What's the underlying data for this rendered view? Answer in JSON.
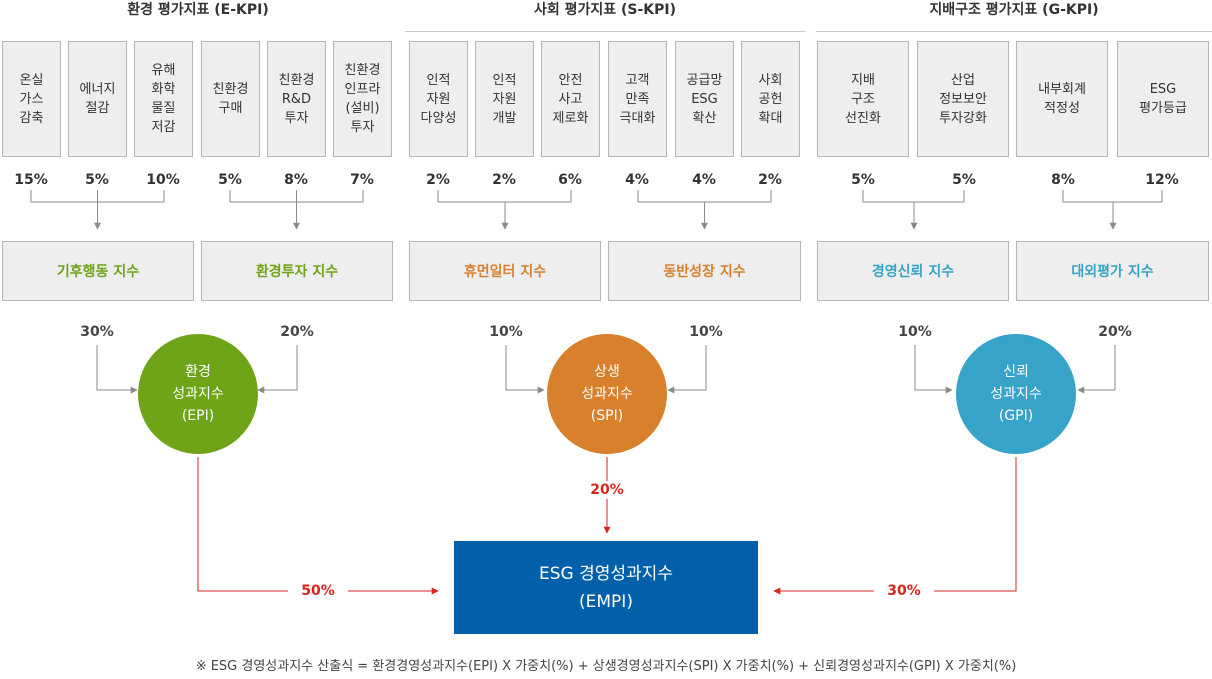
{
  "colors": {
    "env": "#6fa418",
    "soc": "#d8802c",
    "gov": "#37a3c8",
    "empi": "#0060aa",
    "arrow_red": "#d9251c",
    "connector": "#8a8a8a"
  },
  "sections": [
    {
      "title": "환경 평가지표 (E-KPI)",
      "indicators": [
        {
          "label": "온실\n가스\n감축",
          "weight": "15%"
        },
        {
          "label": "에너지\n절감",
          "weight": "5%"
        },
        {
          "label": "유해\n화학\n물질\n저감",
          "weight": "10%"
        },
        {
          "label": "친환경\n구매",
          "weight": "5%"
        },
        {
          "label": "친환경\nR&D\n투자",
          "weight": "8%"
        },
        {
          "label": "친환경\n인프라\n(설비)\n투자",
          "weight": "7%"
        }
      ],
      "sub_indices": [
        {
          "label": "기후행동 지수",
          "weight": "30%"
        },
        {
          "label": "환경투자 지수",
          "weight": "20%"
        }
      ],
      "index": {
        "line1": "환경",
        "line2": "성과지수",
        "line3": "(EPI)"
      },
      "final_weight": "50%"
    },
    {
      "title": "사회 평가지표 (S-KPI)",
      "indicators": [
        {
          "label": "인적\n자원\n다양성",
          "weight": "2%"
        },
        {
          "label": "인적\n자원\n개발",
          "weight": "2%"
        },
        {
          "label": "안전\n사고\n제로화",
          "weight": "6%"
        },
        {
          "label": "고객\n만족\n극대화",
          "weight": "4%"
        },
        {
          "label": "공급망\nESG\n확산",
          "weight": "4%"
        },
        {
          "label": "사회\n공헌\n확대",
          "weight": "2%"
        }
      ],
      "sub_indices": [
        {
          "label": "휴먼일터 지수",
          "weight": "10%"
        },
        {
          "label": "동반성장 지수",
          "weight": "10%"
        }
      ],
      "index": {
        "line1": "상생",
        "line2": "성과지수",
        "line3": "(SPI)"
      },
      "final_weight": "20%"
    },
    {
      "title": "지배구조 평가지표 (G-KPI)",
      "indicators": [
        {
          "label": "지배\n구조\n선진화",
          "weight": "5%"
        },
        {
          "label": "산업\n정보보안\n투자강화",
          "weight": "5%"
        },
        {
          "label": "내부회계\n적정성",
          "weight": "8%"
        },
        {
          "label": "ESG\n평가등급",
          "weight": "12%"
        }
      ],
      "sub_indices": [
        {
          "label": "경영신뢰 지수",
          "weight": "10%"
        },
        {
          "label": "대외평가 지수",
          "weight": "20%"
        }
      ],
      "index": {
        "line1": "신뢰",
        "line2": "성과지수",
        "line3": "(GPI)"
      },
      "final_weight": "30%"
    }
  ],
  "empi": {
    "line1": "ESG 경영성과지수",
    "line2": "(EMPI)"
  },
  "footnote": "※ ESG 경영성과지수 산출식 = 환경경영성과지수(EPI) X 가중치(%) + 상생경영성과지수(SPI) X 가중치(%) + 신뢰경영성과지수(GPI) X 가중치(%)"
}
